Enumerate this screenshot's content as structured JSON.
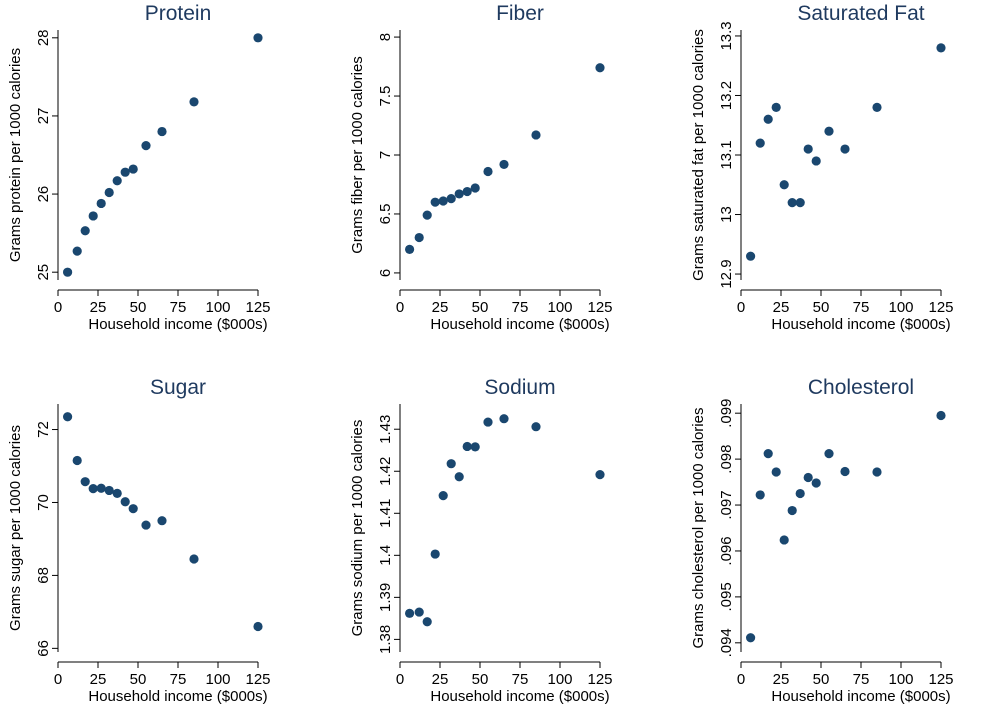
{
  "style": {
    "point_color": "#1a476f",
    "title_color": "#1f3a5f",
    "background": "#ffffff"
  },
  "chart_data": [
    {
      "type": "scatter",
      "title": "Protein",
      "xlabel": "Household income ($000s)",
      "ylabel": "Grams protein per 1000 calories",
      "xlim": [
        0,
        150
      ],
      "xticks": [
        0,
        25,
        50,
        75,
        100,
        125
      ],
      "xtick_labels": [
        "0",
        "25",
        "50",
        "75",
        "100",
        "125"
      ],
      "ylim": [
        24.9,
        28.1
      ],
      "yticks": [
        25,
        26,
        27,
        28
      ],
      "ytick_labels": [
        "25",
        "26",
        "27",
        "28"
      ],
      "grid": false,
      "x": [
        6,
        12,
        17,
        22,
        27,
        32,
        37,
        42,
        47,
        55,
        65,
        85,
        125
      ],
      "y": [
        25.0,
        25.27,
        25.53,
        25.72,
        25.88,
        26.02,
        26.17,
        26.28,
        26.32,
        26.62,
        26.8,
        27.18,
        28.0
      ]
    },
    {
      "type": "scatter",
      "title": "Fiber",
      "xlabel": "Household income ($000s)",
      "ylabel": "Grams fiber per 1000 calories",
      "xlim": [
        0,
        150
      ],
      "xticks": [
        0,
        25,
        50,
        75,
        100,
        125
      ],
      "xtick_labels": [
        "0",
        "25",
        "50",
        "75",
        "100",
        "125"
      ],
      "ylim": [
        5.94,
        8.06
      ],
      "yticks": [
        6,
        6.5,
        7,
        7.5,
        8
      ],
      "ytick_labels": [
        "6",
        "6.5",
        "7",
        "7.5",
        "8"
      ],
      "grid": false,
      "x": [
        6,
        12,
        17,
        22,
        27,
        32,
        37,
        42,
        47,
        55,
        65,
        85,
        125
      ],
      "y": [
        6.2,
        6.3,
        6.49,
        6.6,
        6.61,
        6.63,
        6.67,
        6.69,
        6.72,
        6.86,
        6.92,
        7.17,
        7.74
      ]
    },
    {
      "type": "scatter",
      "title": "Saturated Fat",
      "xlabel": "Household income ($000s)",
      "ylabel": "Grams saturated fat per 1000 calories",
      "xlim": [
        0,
        150
      ],
      "xticks": [
        0,
        25,
        50,
        75,
        100,
        125
      ],
      "xtick_labels": [
        "0",
        "25",
        "50",
        "75",
        "100",
        "125"
      ],
      "ylim": [
        12.89,
        13.31
      ],
      "yticks": [
        12.9,
        13,
        13.1,
        13.2,
        13.3
      ],
      "ytick_labels": [
        "12.9",
        "13",
        "13.1",
        "13.2",
        "13.3"
      ],
      "grid": false,
      "x": [
        6,
        12,
        17,
        22,
        27,
        32,
        37,
        42,
        47,
        55,
        65,
        85,
        125
      ],
      "y": [
        12.93,
        13.12,
        13.16,
        13.18,
        13.05,
        13.02,
        13.02,
        13.11,
        13.09,
        13.14,
        13.11,
        13.18,
        13.28
      ]
    },
    {
      "type": "scatter",
      "title": "Sugar",
      "xlabel": "Household income ($000s)",
      "ylabel": "Grams sugar per 1000 calories",
      "xlim": [
        0,
        150
      ],
      "xticks": [
        0,
        25,
        50,
        75,
        100,
        125
      ],
      "xtick_labels": [
        "0",
        "25",
        "50",
        "75",
        "100",
        "125"
      ],
      "ylim": [
        65.9,
        72.7
      ],
      "yticks": [
        66,
        68,
        70,
        72
      ],
      "ytick_labels": [
        "66",
        "68",
        "70",
        "72"
      ],
      "grid": false,
      "x": [
        6,
        12,
        17,
        22,
        27,
        32,
        37,
        42,
        47,
        55,
        65,
        85,
        125
      ],
      "y": [
        72.35,
        71.15,
        70.57,
        70.38,
        70.39,
        70.33,
        70.25,
        70.02,
        69.83,
        69.38,
        69.5,
        68.45,
        66.6
      ]
    },
    {
      "type": "scatter",
      "title": "Sodium",
      "xlabel": "Household income ($000s)",
      "ylabel": "Grams sodium per 1000 calories",
      "xlim": [
        0,
        150
      ],
      "xticks": [
        0,
        25,
        50,
        75,
        100,
        125
      ],
      "xtick_labels": [
        "0",
        "25",
        "50",
        "75",
        "100",
        "125"
      ],
      "ylim": [
        1.377,
        1.436
      ],
      "yticks": [
        1.38,
        1.39,
        1.4,
        1.41,
        1.42,
        1.43
      ],
      "ytick_labels": [
        "1.38",
        "1.39",
        "1.4",
        "1.41",
        "1.42",
        "1.43"
      ],
      "grid": false,
      "x": [
        6,
        12,
        17,
        22,
        27,
        32,
        37,
        42,
        47,
        55,
        65,
        85,
        125
      ],
      "y": [
        1.3862,
        1.3865,
        1.3842,
        1.4003,
        1.4142,
        1.4218,
        1.4187,
        1.4259,
        1.4258,
        1.4317,
        1.4325,
        1.4306,
        1.4192
      ]
    },
    {
      "type": "scatter",
      "title": "Cholesterol",
      "xlabel": "Household income ($000s)",
      "ylabel": "Grams cholesterol per 1000 calories",
      "xlim": [
        0,
        150
      ],
      "xticks": [
        0,
        25,
        50,
        75,
        100,
        125
      ],
      "xtick_labels": [
        "0",
        "25",
        "50",
        "75",
        "100",
        "125"
      ],
      "ylim": [
        0.0938,
        0.0992
      ],
      "yticks": [
        0.094,
        0.095,
        0.096,
        0.097,
        0.098,
        0.099
      ],
      "ytick_labels": [
        ".094",
        ".095",
        ".096",
        ".097",
        ".098",
        ".099"
      ],
      "grid": false,
      "x": [
        6,
        12,
        17,
        22,
        27,
        32,
        37,
        42,
        47,
        55,
        65,
        85,
        125
      ],
      "y": [
        0.09411,
        0.09722,
        0.09812,
        0.09772,
        0.09624,
        0.09688,
        0.09725,
        0.0976,
        0.09748,
        0.09812,
        0.09773,
        0.09772,
        0.09895
      ]
    }
  ]
}
